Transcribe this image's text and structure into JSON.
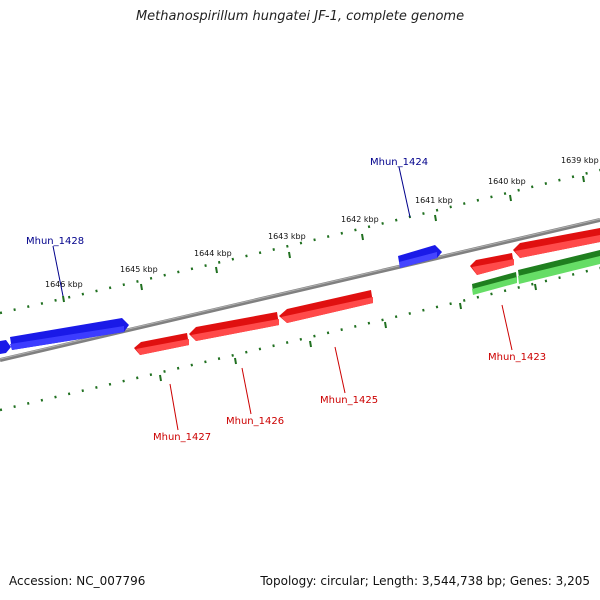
{
  "title": "Methanospirillum hungatei JF-1, complete genome",
  "accession": "Accession: NC_007796",
  "summary": "Topology: circular; Length: 3,544,738 bp; Genes: 3,205",
  "ticks": [
    "1639 kbp",
    "1640 kbp",
    "1641 kbp",
    "1642 kbp",
    "1643 kbp",
    "1644 kbp",
    "1645 kbp",
    "1646 kbp"
  ],
  "genes": {
    "mhun_1423": "Mhun_1423",
    "mhun_1424": "Mhun_1424",
    "mhun_1425": "Mhun_1425",
    "mhun_1426": "Mhun_1426",
    "mhun_1427": "Mhun_1427",
    "mhun_1428": "Mhun_1428"
  },
  "colors": {
    "forward_gene": "#1010e0",
    "reverse_gene": "#e01010",
    "rna_gene": "#2a9a2a",
    "backbone": "#808080",
    "tick": "#207020",
    "forward_label": "#00008b",
    "reverse_label": "#cc0000"
  }
}
